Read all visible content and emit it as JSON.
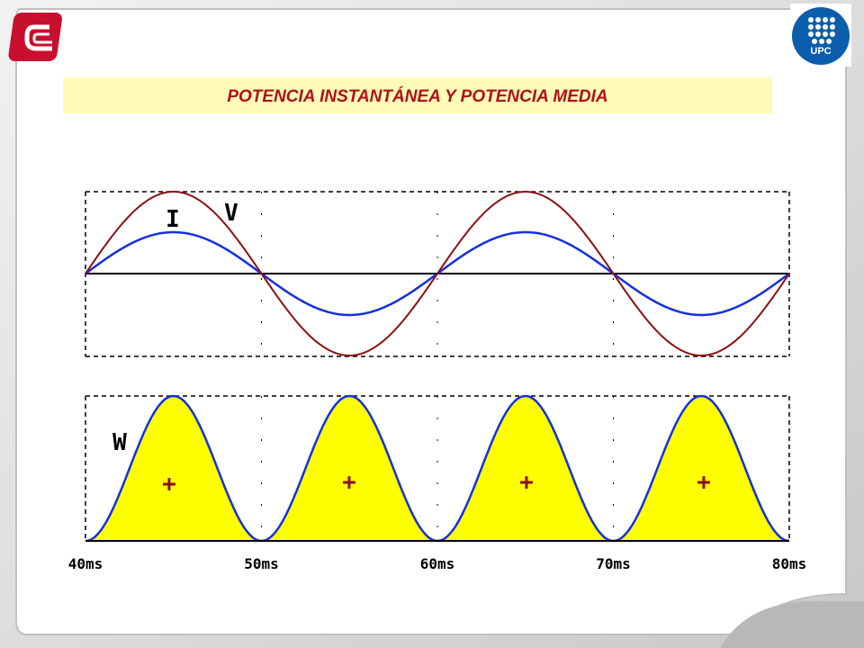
{
  "header": {
    "title": "POTENCIA INSTANTÁNEA Y POTENCIA MEDIA",
    "logo_text": "UPC"
  },
  "plot": {
    "top_labels": [
      "I",
      "V"
    ],
    "bottom_label": "W",
    "signs": [
      "+",
      "+",
      "+",
      "+"
    ],
    "x_labels": [
      "40ms",
      "50ms",
      "60ms",
      "70ms",
      "80ms"
    ]
  }
}
